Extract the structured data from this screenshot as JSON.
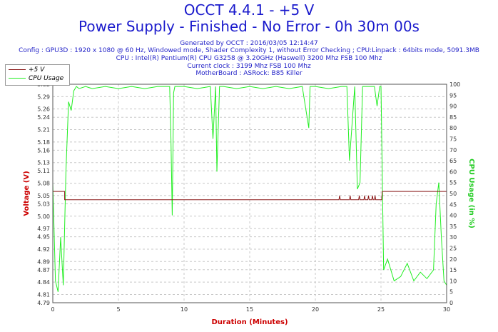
{
  "header": {
    "title": "OCCT 4.4.1 - +5 V",
    "subtitle": "Power Supply - Finished - No Error - 0h 30m 00s",
    "generated": "Generated by OCCT : 2016/03/05 12:14:47",
    "config": "Config : GPU3D : 1920 x 1080 @ 60 Hz, Windowed mode, Shader Complexity 1, without Error Checking ; CPU:Linpack : 64bits mode, 5091.3MB",
    "cpu": "CPU : Intel(R) Pentium(R) CPU G3258 @ 3.20GHz (Haswell) 3200 Mhz FSB 100 Mhz",
    "clock": "Current clock : 3199 Mhz FSB 100 Mhz",
    "motherboard": "MotherBoard : ASRock: B85 Killer"
  },
  "legend": {
    "series1": "+5 V",
    "series2": "CPU Usage"
  },
  "colors": {
    "voltage": "#8b1a1a",
    "cpu": "#22ee22",
    "title": "#1a1acc",
    "xlabel": "#cc0000",
    "ylabel_left": "#cc0000",
    "ylabel_right": "#22cc22"
  },
  "chart_data": {
    "type": "line",
    "xlabel": "Duration (Minutes)",
    "ylabel": "Voltage (V)",
    "y2label": "CPU Usage (in %)",
    "xlim": [
      0,
      30
    ],
    "ylim": [
      4.79,
      5.32
    ],
    "y2lim": [
      0,
      100
    ],
    "x_ticks": [
      0,
      5,
      10,
      15,
      20,
      25,
      30
    ],
    "y_ticks": [
      4.79,
      4.81,
      4.84,
      4.87,
      4.89,
      4.92,
      4.95,
      4.97,
      5.0,
      5.03,
      5.05,
      5.08,
      5.11,
      5.13,
      5.16,
      5.18,
      5.21,
      5.24,
      5.26,
      5.29,
      5.32
    ],
    "y2_ticks": [
      0,
      5,
      10,
      15,
      20,
      25,
      30,
      35,
      40,
      45,
      50,
      55,
      60,
      65,
      70,
      75,
      80,
      85,
      90,
      95,
      100
    ],
    "grid": true,
    "legend_position": "top-left",
    "series": [
      {
        "name": "+5 V",
        "axis": "left",
        "x": [
          0,
          0.9,
          0.9,
          21.8,
          21.85,
          21.9,
          22.6,
          22.65,
          22.7,
          23.3,
          23.35,
          23.4,
          23.7,
          23.75,
          23.8,
          24.0,
          24.05,
          24.1,
          24.3,
          24.35,
          24.4,
          24.5,
          24.55,
          24.6,
          25.05,
          25.1,
          30
        ],
        "values": [
          5.06,
          5.06,
          5.04,
          5.04,
          5.05,
          5.04,
          5.04,
          5.05,
          5.04,
          5.04,
          5.05,
          5.04,
          5.04,
          5.05,
          5.04,
          5.04,
          5.05,
          5.04,
          5.04,
          5.05,
          5.04,
          5.04,
          5.05,
          5.04,
          5.04,
          5.06,
          5.06
        ]
      },
      {
        "name": "CPU Usage",
        "axis": "right",
        "x": [
          0,
          0.2,
          0.4,
          0.6,
          0.8,
          1.0,
          1.2,
          1.4,
          1.6,
          1.8,
          2.0,
          2.5,
          3,
          4,
          5,
          6,
          7,
          8,
          8.9,
          9.0,
          9.1,
          9.2,
          9.3,
          10,
          11,
          12,
          12.2,
          12.4,
          12.5,
          12.7,
          13,
          14,
          15,
          16,
          17,
          18,
          19,
          19.5,
          19.6,
          19.7,
          20,
          21,
          22,
          22.2,
          22.4,
          22.6,
          23.0,
          23.2,
          23.4,
          23.6,
          23.8,
          24.0,
          24.5,
          24.7,
          24.9,
          25.0,
          25.2,
          25.5,
          26,
          26.5,
          27,
          27.5,
          28,
          28.5,
          29.0,
          29.2,
          29.4,
          29.6,
          29.8,
          30
        ],
        "values": [
          55,
          10,
          5,
          30,
          8,
          60,
          92,
          88,
          97,
          99,
          98,
          99,
          98,
          99,
          98,
          99,
          98,
          99,
          99,
          75,
          40,
          96,
          99,
          99,
          98,
          99,
          75,
          99,
          60,
          99,
          99,
          98,
          99,
          98,
          99,
          98,
          99,
          80,
          99,
          99,
          99,
          98,
          99,
          99,
          99,
          65,
          99,
          52,
          55,
          99,
          99,
          99,
          99,
          90,
          99,
          99,
          15,
          20,
          10,
          12,
          18,
          10,
          14,
          11,
          15,
          45,
          55,
          30,
          10,
          8
        ]
      }
    ]
  }
}
